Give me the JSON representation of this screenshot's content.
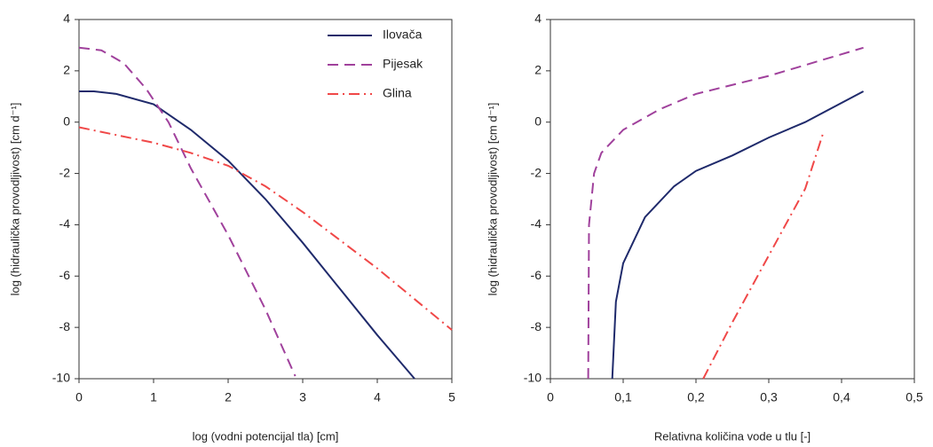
{
  "chart_data": [
    {
      "type": "line",
      "xlabel": "log (vodni potencijal tla) [cm]",
      "ylabel": "log  (hidraulička provodljivost) [cm d⁻¹]",
      "xlim": [
        0,
        5
      ],
      "ylim": [
        -10,
        4
      ],
      "xticks": [
        0,
        1,
        2,
        3,
        4,
        5
      ],
      "yticks": [
        -10,
        -8,
        -6,
        -4,
        -2,
        0,
        2,
        4
      ],
      "legend": "upper right",
      "series": [
        {
          "name": "Ilovača",
          "color": "#1f2a6b",
          "linestyle": "solid",
          "x": [
            0,
            0.2,
            0.5,
            1,
            1.5,
            2,
            2.5,
            3,
            3.5,
            4,
            4.5
          ],
          "values": [
            1.2,
            1.2,
            1.1,
            0.7,
            -0.3,
            -1.5,
            -3.0,
            -4.7,
            -6.5,
            -8.3,
            -10
          ]
        },
        {
          "name": "Pijesak",
          "color": "#a0419c",
          "linestyle": "dashed",
          "x": [
            0,
            0.3,
            0.6,
            0.9,
            1.2,
            1.5,
            2,
            2.5,
            2.9
          ],
          "values": [
            2.9,
            2.8,
            2.3,
            1.3,
            0,
            -1.8,
            -4.4,
            -7.3,
            -9.9
          ]
        },
        {
          "name": "Glina",
          "color": "#f04848",
          "linestyle": "dashdot",
          "x": [
            0,
            0.5,
            1,
            1.5,
            2,
            2.5,
            3,
            3.5,
            4,
            4.5,
            5
          ],
          "values": [
            -0.2,
            -0.5,
            -0.8,
            -1.2,
            -1.7,
            -2.5,
            -3.5,
            -4.6,
            -5.7,
            -6.9,
            -8.1
          ]
        }
      ]
    },
    {
      "type": "line",
      "xlabel": "Relativna količina vode u tlu [-]",
      "ylabel": "log  (hidraulička provodljivost) [cm d⁻¹]",
      "xlim": [
        0,
        0.5
      ],
      "ylim": [
        -10,
        4
      ],
      "xticks": [
        0,
        {
          "value": 0.1,
          "label": "0,1"
        },
        {
          "value": 0.2,
          "label": "0,2"
        },
        {
          "value": 0.3,
          "label": "0,3"
        },
        {
          "value": 0.4,
          "label": "0,4"
        },
        {
          "value": 0.5,
          "label": "0,5"
        }
      ],
      "yticks": [
        -10,
        -8,
        -6,
        -4,
        -2,
        0,
        2,
        4
      ],
      "series": [
        {
          "color": "#1f2a6b",
          "linestyle": "solid",
          "x": [
            0.085,
            0.09,
            0.1,
            0.13,
            0.17,
            0.2,
            0.25,
            0.3,
            0.35,
            0.43
          ],
          "values": [
            -10,
            -7,
            -5.5,
            -3.7,
            -2.5,
            -1.9,
            -1.3,
            -0.6,
            0,
            1.2
          ]
        },
        {
          "color": "#a0419c",
          "linestyle": "dashed",
          "x": [
            0.052,
            0.053,
            0.06,
            0.07,
            0.1,
            0.15,
            0.2,
            0.3,
            0.43
          ],
          "values": [
            -10,
            -4,
            -2,
            -1.2,
            -0.3,
            0.5,
            1.1,
            1.8,
            2.9
          ]
        },
        {
          "color": "#f04848",
          "linestyle": "dashdot",
          "x": [
            0.21,
            0.25,
            0.3,
            0.35,
            0.375
          ],
          "values": [
            -10,
            -7.8,
            -5.2,
            -2.6,
            -0.4
          ]
        }
      ]
    }
  ]
}
